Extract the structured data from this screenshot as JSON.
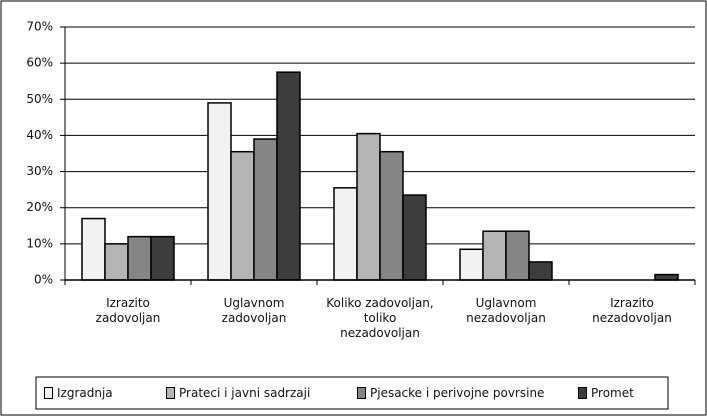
{
  "chart_data": {
    "type": "bar",
    "categories": [
      "Izrazito zadovoljan",
      "Uglavnom zadovoljan",
      "Koliko zadovoljan, toliko nezadovoljan",
      "Uglavnom nezadovoljan",
      "Izrazito nezadovoljan"
    ],
    "series": [
      {
        "name": "Izgradnja",
        "color": "#f2f2f2",
        "values": [
          17,
          49,
          25.5,
          8.5,
          0
        ]
      },
      {
        "name": "Prateci i javni sadrzaji",
        "color": "#b4b4b4",
        "values": [
          10,
          35.5,
          40.5,
          13.5,
          0
        ]
      },
      {
        "name": "Pjesacke i perivojne povrsine",
        "color": "#858585",
        "values": [
          12,
          39,
          35.5,
          13.5,
          0
        ]
      },
      {
        "name": "Promet",
        "color": "#3d3d3d",
        "values": [
          12,
          57.5,
          23.5,
          5,
          1.5
        ]
      }
    ],
    "ylim": [
      0,
      70
    ],
    "yticks": [
      {
        "value": 0,
        "label": "0%"
      },
      {
        "value": 10,
        "label": "10%"
      },
      {
        "value": 20,
        "label": "20%"
      },
      {
        "value": 30,
        "label": "30%"
      },
      {
        "value": 40,
        "label": "40%"
      },
      {
        "value": 50,
        "label": "50%"
      },
      {
        "value": 60,
        "label": "60%"
      },
      {
        "value": 70,
        "label": "70%"
      }
    ],
    "grid": true,
    "legend": "bottom"
  }
}
